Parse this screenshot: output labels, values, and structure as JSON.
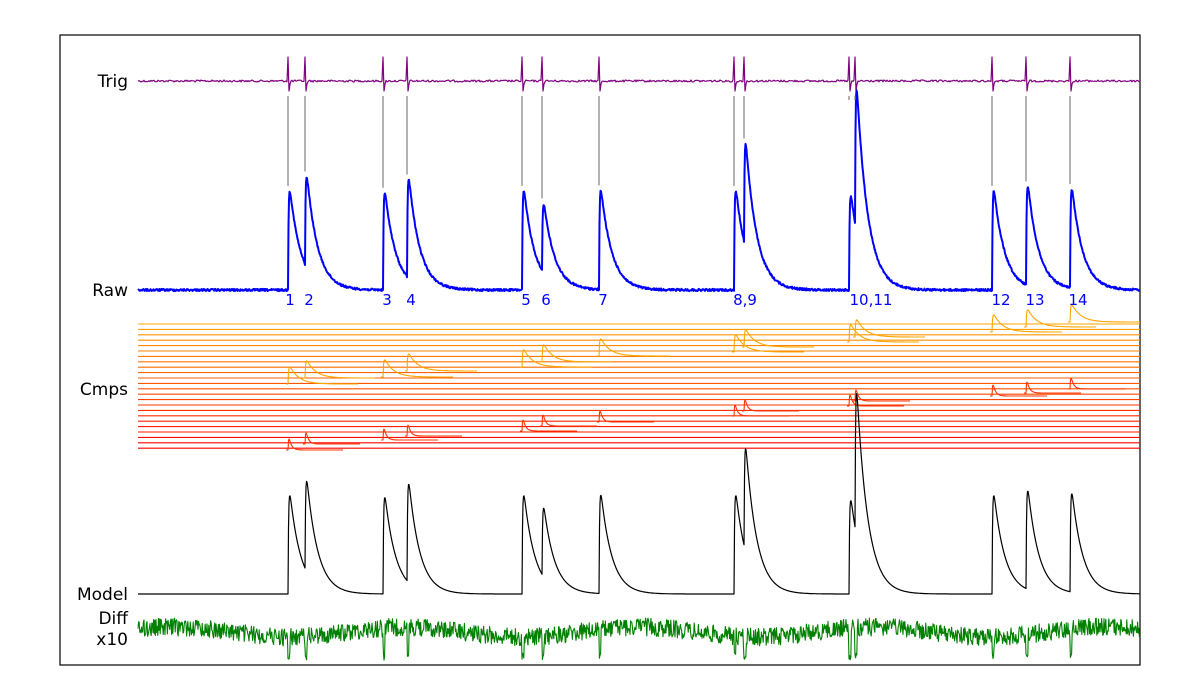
{
  "chart_data": {
    "type": "line",
    "grid": false,
    "legend": "none",
    "rows": [
      {
        "key": "trig",
        "label": [
          "Trig"
        ],
        "color": "#800080"
      },
      {
        "key": "raw",
        "label": [
          "Raw"
        ],
        "color": "#0000ff"
      },
      {
        "key": "cmps",
        "label": [
          "Cmps"
        ],
        "colors": [
          "#ff0000",
          "#ffa500"
        ]
      },
      {
        "key": "model",
        "label": [
          "Model"
        ],
        "color": "#000000"
      },
      {
        "key": "diff",
        "label": [
          "Diff",
          "x10"
        ],
        "color": "#008000"
      }
    ],
    "events": [
      {
        "label": "1",
        "t": 288,
        "amp": 1.0
      },
      {
        "label": "2",
        "t": 305,
        "amp": 0.92
      },
      {
        "label": "3",
        "t": 383,
        "amp": 0.98
      },
      {
        "label": "4",
        "t": 407,
        "amp": 1.0
      },
      {
        "label": "5",
        "t": 522,
        "amp": 1.0
      },
      {
        "label": "6",
        "t": 542,
        "amp": 0.7
      },
      {
        "label": "7",
        "t": 599,
        "amp": 1.0
      },
      {
        "label": "8,9",
        "t": 734,
        "amp": 1.0
      },
      {
        "label": "8,9",
        "t": 744,
        "amp": 1.05
      },
      {
        "label": "10,11",
        "t": 849,
        "amp": 0.95
      },
      {
        "label": "10,11",
        "t": 855,
        "amp": 1.45
      },
      {
        "label": "12",
        "t": 992,
        "amp": 1.0
      },
      {
        "label": "13",
        "t": 1026,
        "amp": 1.0
      },
      {
        "label": "14",
        "t": 1070,
        "amp": 1.0
      }
    ],
    "event_labels": [
      {
        "text": "1",
        "t": 290
      },
      {
        "text": "2",
        "t": 309
      },
      {
        "text": "3",
        "t": 387
      },
      {
        "text": "4",
        "t": 411
      },
      {
        "text": "5",
        "t": 526
      },
      {
        "text": "6",
        "t": 546
      },
      {
        "text": "7",
        "t": 603
      },
      {
        "text": "8,9",
        "t": 745
      },
      {
        "text": "10,11",
        "t": 871
      },
      {
        "text": "12",
        "t": 1001
      },
      {
        "text": "13",
        "t": 1035
      },
      {
        "text": "14",
        "t": 1078
      }
    ],
    "x_range": [
      138,
      1140
    ]
  }
}
